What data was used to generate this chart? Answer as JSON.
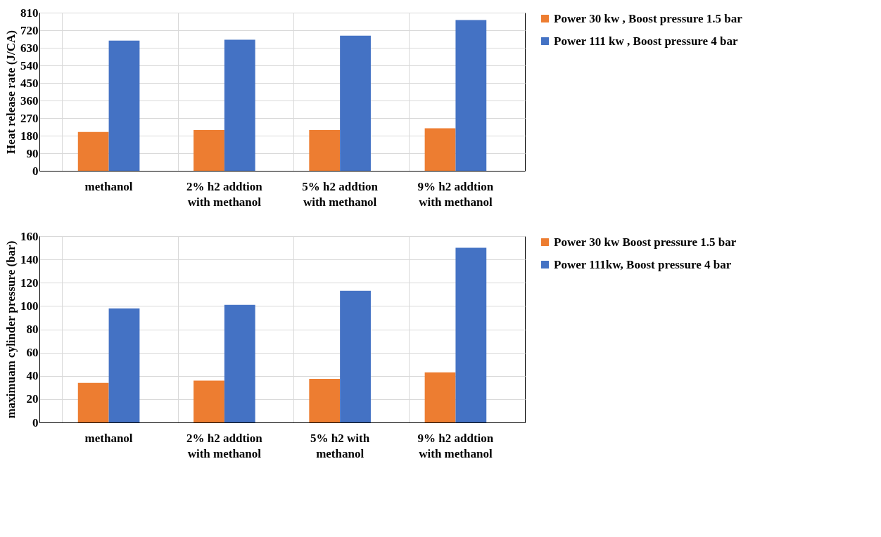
{
  "chart_data": [
    {
      "type": "bar",
      "ylabel": "Heat release  rate (J/CA)",
      "categories": [
        "methanol",
        "2%  h2 addtion\nwith methanol",
        "5% h2 addtion\nwith methanol",
        "9% h2 addtion\nwith methanol"
      ],
      "series": [
        {
          "name": "Power 30 kw , Boost pressure 1.5 bar",
          "color": "#ed7d31",
          "values": [
            199,
            209,
            209,
            218
          ]
        },
        {
          "name": "Power 111 kw  , Boost pressure 4 bar",
          "color": "#4472c4",
          "values": [
            667,
            671,
            692,
            772
          ]
        }
      ],
      "ylim": [
        0,
        810
      ],
      "yticks": [
        0,
        90,
        180,
        270,
        360,
        450,
        540,
        630,
        720,
        810
      ],
      "grid": true,
      "legend": "right"
    },
    {
      "type": "bar",
      "ylabel": "maximuam  cylinder pressure (bar)",
      "categories": [
        "methanol",
        "2% h2 addtion\nwith methanol",
        "5% h2 with\nmethanol",
        "9% h2 addtion\nwith methanol"
      ],
      "series": [
        {
          "name": "Power 30 kw  Boost pressure 1.5 bar",
          "color": "#ed7d31",
          "values": [
            34,
            36,
            37.5,
            43
          ]
        },
        {
          "name": "Power 111kw, Boost pressure 4 bar",
          "color": "#4472c4",
          "values": [
            98,
            101,
            113,
            150
          ]
        }
      ],
      "ylim": [
        0,
        160
      ],
      "yticks": [
        0,
        20,
        40,
        60,
        80,
        100,
        120,
        140,
        160
      ],
      "grid": true,
      "legend": "right"
    }
  ]
}
